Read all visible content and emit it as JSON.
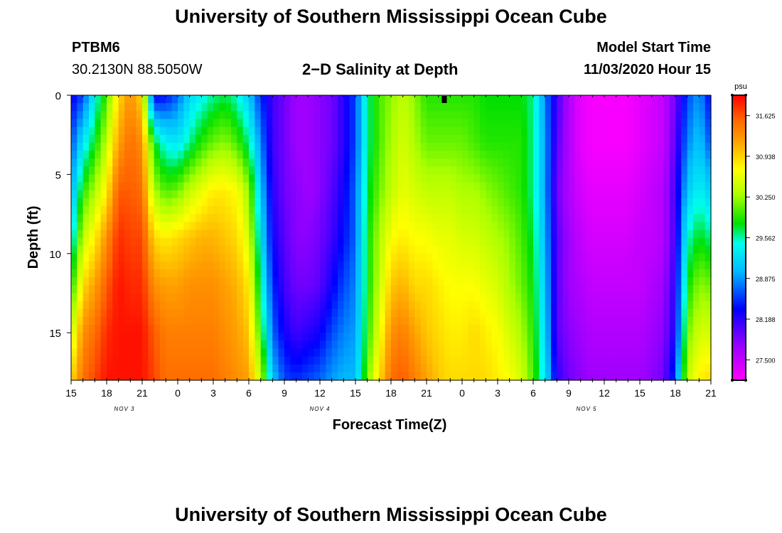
{
  "page": {
    "top_title": "University of Southern Mississippi Ocean Cube",
    "bottom_title": "University of Southern Mississippi Ocean Cube",
    "station": "PTBM6",
    "coords": "30.2130N 88.5050W",
    "plot_title": "2−D Salinity at Depth",
    "model_label": "Model Start Time",
    "model_time": "11/03/2020 Hour 15"
  },
  "chart_data": {
    "type": "heatmap",
    "title": "2−D Salinity at Depth",
    "xlabel": "Forecast Time(Z)",
    "ylabel": "Depth (ft)",
    "x_range_hours": [
      0,
      54
    ],
    "y_range_ft": [
      0,
      18
    ],
    "y_inverted": true,
    "y_ticks": [
      0,
      5,
      10,
      15
    ],
    "x_tick_labels": [
      "15",
      "18",
      "21",
      "0",
      "3",
      "6",
      "9",
      "12",
      "15",
      "18",
      "21",
      "0",
      "3",
      "6",
      "9",
      "12",
      "15",
      "18",
      "21"
    ],
    "date_labels": [
      {
        "label": "NOV 3",
        "hour": 4.5
      },
      {
        "label": "NOV 4",
        "hour": 21
      },
      {
        "label": "NOV 5",
        "hour": 43.5
      }
    ],
    "colorbar": {
      "unit": "psu",
      "min": 27.156,
      "max": 31.969,
      "ticks": [
        "31.625",
        "30.938",
        "30.250",
        "29.562",
        "28.875",
        "28.188",
        "27.500"
      ],
      "tick_values": [
        31.625,
        30.938,
        30.25,
        29.562,
        28.875,
        28.188,
        27.5
      ]
    },
    "salinity_profiles": {
      "description": "Estimated salinity (psu) at depths 0, 3, 6, 9, 12, 15, 18 ft for each forecast hour",
      "depths_ft": [
        0,
        3,
        6,
        9,
        12,
        15,
        18
      ],
      "hours": [
        0,
        1,
        2,
        3,
        4,
        5,
        6,
        7,
        8,
        9,
        10,
        11,
        12,
        13,
        14,
        15,
        16,
        17,
        18,
        19,
        20,
        21,
        22,
        23,
        24,
        25,
        26,
        27,
        28,
        29,
        30,
        31,
        32,
        33,
        34,
        35,
        36,
        37,
        38,
        39,
        40,
        41,
        42,
        43,
        44,
        45,
        46,
        47,
        48,
        49,
        50,
        51,
        52,
        53,
        54
      ],
      "values": [
        [
          28.3,
          28.6,
          28.9,
          29.3,
          29.8,
          30.4,
          30.9
        ],
        [
          28.6,
          29.3,
          29.9,
          30.4,
          30.9,
          31.3,
          31.5
        ],
        [
          29.4,
          29.8,
          30.3,
          30.8,
          31.2,
          31.5,
          31.7
        ],
        [
          30.0,
          30.4,
          30.8,
          31.3,
          31.6,
          31.8,
          31.9
        ],
        [
          30.9,
          31.2,
          31.6,
          31.8,
          31.9,
          31.9,
          31.9
        ],
        [
          31.3,
          31.5,
          31.6,
          31.7,
          31.8,
          31.9,
          31.9
        ],
        [
          30.9,
          31.3,
          31.5,
          31.7,
          31.8,
          31.9,
          31.9
        ],
        [
          28.3,
          29.8,
          30.3,
          30.9,
          31.3,
          31.6,
          31.7
        ],
        [
          28.4,
          29.4,
          30.0,
          30.8,
          31.2,
          31.4,
          31.5
        ],
        [
          28.7,
          29.3,
          30.1,
          30.9,
          31.2,
          31.4,
          31.5
        ],
        [
          29.2,
          29.6,
          30.4,
          31.0,
          31.3,
          31.4,
          31.5
        ],
        [
          29.4,
          29.9,
          30.6,
          31.1,
          31.3,
          31.4,
          31.5
        ],
        [
          29.6,
          30.1,
          30.8,
          31.1,
          31.3,
          31.4,
          31.5
        ],
        [
          29.7,
          30.2,
          30.8,
          31.0,
          31.2,
          31.3,
          31.4
        ],
        [
          29.5,
          30.0,
          30.7,
          30.9,
          31.1,
          31.2,
          31.3
        ],
        [
          29.1,
          29.6,
          30.2,
          30.5,
          30.8,
          31.0,
          31.2
        ],
        [
          28.5,
          28.8,
          29.1,
          29.3,
          29.6,
          29.9,
          30.4
        ],
        [
          28.1,
          28.1,
          28.2,
          28.3,
          28.5,
          28.7,
          29.1
        ],
        [
          27.9,
          27.9,
          27.9,
          28.0,
          28.1,
          28.3,
          28.6
        ],
        [
          27.7,
          27.7,
          27.8,
          27.8,
          27.9,
          28.1,
          28.5
        ],
        [
          27.7,
          27.7,
          27.7,
          27.8,
          27.9,
          28.2,
          28.6
        ],
        [
          27.8,
          27.8,
          27.8,
          27.9,
          28.0,
          28.3,
          28.7
        ],
        [
          27.9,
          27.9,
          28.0,
          28.1,
          28.3,
          28.6,
          28.9
        ],
        [
          28.2,
          28.2,
          28.3,
          28.4,
          28.6,
          28.8,
          29.0
        ],
        [
          28.6,
          28.6,
          28.7,
          28.7,
          28.8,
          28.9,
          29.0
        ],
        [
          29.6,
          29.6,
          29.7,
          29.8,
          29.8,
          29.9,
          30.1
        ],
        [
          30.0,
          30.0,
          30.1,
          30.3,
          30.4,
          30.6,
          30.9
        ],
        [
          30.2,
          30.3,
          30.4,
          30.7,
          31.0,
          31.3,
          31.5
        ],
        [
          30.4,
          30.5,
          30.6,
          30.8,
          31.1,
          31.4,
          31.6
        ],
        [
          30.2,
          30.3,
          30.5,
          30.7,
          30.9,
          31.2,
          31.4
        ],
        [
          29.9,
          30.1,
          30.4,
          30.7,
          30.9,
          31.0,
          31.2
        ],
        [
          29.9,
          30.1,
          30.4,
          30.6,
          30.8,
          30.9,
          31.0
        ],
        [
          29.9,
          30.1,
          30.4,
          30.6,
          30.7,
          30.8,
          30.9
        ],
        [
          29.9,
          30.1,
          30.3,
          30.5,
          30.7,
          30.8,
          30.9
        ],
        [
          29.9,
          30.0,
          30.3,
          30.5,
          30.7,
          30.9,
          30.9
        ],
        [
          29.8,
          29.9,
          30.2,
          30.4,
          30.6,
          30.8,
          30.9
        ],
        [
          29.8,
          29.9,
          30.1,
          30.3,
          30.5,
          30.7,
          30.8
        ],
        [
          29.8,
          29.9,
          30.0,
          30.2,
          30.3,
          30.5,
          30.7
        ],
        [
          29.8,
          29.9,
          29.9,
          30.0,
          30.1,
          30.3,
          30.5
        ],
        [
          29.6,
          29.6,
          29.6,
          29.7,
          29.8,
          29.9,
          30.0
        ],
        [
          28.8,
          28.9,
          28.9,
          29.0,
          29.1,
          29.2,
          29.3
        ],
        [
          28.1,
          28.0,
          27.9,
          28.0,
          28.0,
          28.0,
          28.2
        ],
        [
          27.6,
          27.6,
          27.6,
          27.7,
          27.7,
          27.8,
          27.9
        ],
        [
          27.3,
          27.3,
          27.4,
          27.5,
          27.6,
          27.7,
          27.8
        ],
        [
          27.2,
          27.2,
          27.3,
          27.4,
          27.5,
          27.6,
          27.7
        ],
        [
          27.2,
          27.2,
          27.3,
          27.4,
          27.5,
          27.6,
          27.7
        ],
        [
          27.2,
          27.2,
          27.3,
          27.4,
          27.5,
          27.6,
          27.7
        ],
        [
          27.2,
          27.2,
          27.3,
          27.4,
          27.5,
          27.6,
          27.7
        ],
        [
          27.3,
          27.3,
          27.4,
          27.5,
          27.5,
          27.6,
          27.7
        ],
        [
          27.4,
          27.4,
          27.5,
          27.5,
          27.6,
          27.7,
          27.8
        ],
        [
          27.5,
          27.5,
          27.6,
          27.6,
          27.7,
          27.8,
          27.9
        ],
        [
          27.9,
          28.0,
          28.1,
          28.1,
          28.2,
          28.3,
          28.6
        ],
        [
          28.6,
          28.8,
          29.1,
          29.5,
          29.8,
          30.1,
          30.4
        ],
        [
          28.9,
          29.1,
          29.4,
          29.8,
          30.2,
          30.5,
          30.8
        ],
        [
          28.3,
          28.6,
          29.1,
          29.6,
          30.1,
          30.5,
          30.9
        ]
      ]
    },
    "marker": {
      "hour": 31.5,
      "depth_ft": 0
    }
  }
}
